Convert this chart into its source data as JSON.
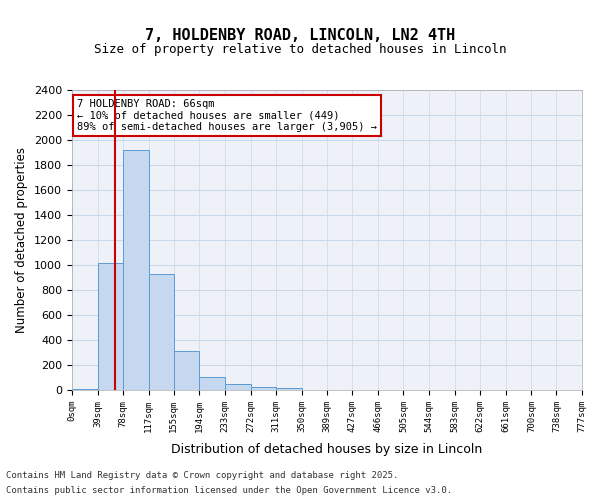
{
  "title": "7, HOLDENBY ROAD, LINCOLN, LN2 4TH",
  "subtitle": "Size of property relative to detached houses in Lincoln",
  "xlabel": "Distribution of detached houses by size in Lincoln",
  "ylabel": "Number of detached properties",
  "bin_labels": [
    "0sqm",
    "39sqm",
    "78sqm",
    "117sqm",
    "155sqm",
    "194sqm",
    "233sqm",
    "272sqm",
    "311sqm",
    "350sqm",
    "389sqm",
    "427sqm",
    "466sqm",
    "505sqm",
    "544sqm",
    "583sqm",
    "622sqm",
    "661sqm",
    "700sqm",
    "738sqm",
    "777sqm"
  ],
  "bin_edges": [
    0,
    39,
    78,
    117,
    155,
    194,
    233,
    272,
    311,
    350,
    389,
    427,
    466,
    505,
    544,
    583,
    622,
    661,
    700,
    738,
    777
  ],
  "bar_heights": [
    10,
    1020,
    1920,
    930,
    310,
    105,
    45,
    25,
    15,
    0,
    0,
    0,
    0,
    0,
    0,
    0,
    0,
    0,
    0,
    0
  ],
  "bar_color": "#c5d8f0",
  "bar_edgecolor": "#5a9ad5",
  "grid_color": "#c8d8e8",
  "background_color": "#eef2f8",
  "property_size": 66,
  "property_line_color": "#cc0000",
  "annotation_text": "7 HOLDENBY ROAD: 66sqm\n← 10% of detached houses are smaller (449)\n89% of semi-detached houses are larger (3,905) →",
  "annotation_box_color": "#cc0000",
  "ylim": [
    0,
    2400
  ],
  "yticks": [
    0,
    200,
    400,
    600,
    800,
    1000,
    1200,
    1400,
    1600,
    1800,
    2000,
    2200,
    2400
  ],
  "footer_line1": "Contains HM Land Registry data © Crown copyright and database right 2025.",
  "footer_line2": "Contains public sector information licensed under the Open Government Licence v3.0."
}
